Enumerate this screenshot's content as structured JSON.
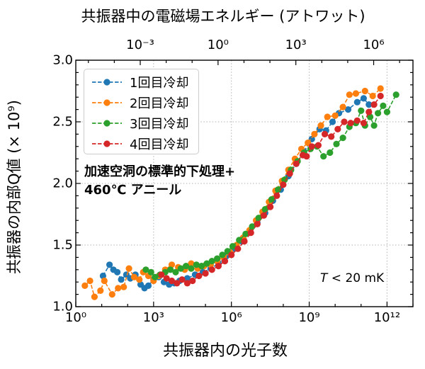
{
  "chart_data": {
    "type": "scatter",
    "title": "共振器中の電磁場エネルギー (アトワット)",
    "top_axis_label": "共振器中の電磁場エネルギー (アトワット)",
    "xlabel": "共振器内の光子数",
    "ylabel": "共振器の内部Q値 (× 10⁹)",
    "x_scale": "log",
    "xlim_exponents": [
      0,
      13
    ],
    "ylim": [
      1.0,
      3.0
    ],
    "grid": true,
    "legend_position": "upper left",
    "x_ticks": [
      {
        "exp": 0,
        "label": "10⁰"
      },
      {
        "exp": 3,
        "label": "10³"
      },
      {
        "exp": 6,
        "label": "10⁶"
      },
      {
        "exp": 9,
        "label": "10⁹"
      },
      {
        "exp": 12,
        "label": "10¹²"
      }
    ],
    "top_ticks": [
      {
        "exp": -3,
        "label": "10⁻³"
      },
      {
        "exp": 0,
        "label": "10⁰"
      },
      {
        "exp": 3,
        "label": "10³"
      },
      {
        "exp": 6,
        "label": "10⁶"
      }
    ],
    "y_ticks": [
      {
        "value": 1.0,
        "label": "1.0"
      },
      {
        "value": 1.5,
        "label": "1.5"
      },
      {
        "value": 2.0,
        "label": "2.0"
      },
      {
        "value": 2.5,
        "label": "2.5"
      },
      {
        "value": 3.0,
        "label": "3.0"
      }
    ],
    "annotations": {
      "treatment_line1": "加速空洞の標準的下処理+",
      "treatment_line2": "460℃ アニール",
      "temperature_variable": "T",
      "temperature_rest": " < 20 mK"
    },
    "series": [
      {
        "name": "1回目冷却",
        "color": "#1f77b4",
        "marker": "circle",
        "linestyle": "dashed",
        "points_log10x_y": [
          [
            1.05,
            1.25
          ],
          [
            1.3,
            1.34
          ],
          [
            1.45,
            1.3
          ],
          [
            1.6,
            1.28
          ],
          [
            1.75,
            1.22
          ],
          [
            1.95,
            1.26
          ],
          [
            2.1,
            1.23
          ],
          [
            2.3,
            1.26
          ],
          [
            2.5,
            1.18
          ],
          [
            2.65,
            1.15
          ],
          [
            2.8,
            1.17
          ],
          [
            3.0,
            1.22
          ],
          [
            3.2,
            1.24
          ],
          [
            3.4,
            1.2
          ],
          [
            3.6,
            1.18
          ],
          [
            3.8,
            1.19
          ],
          [
            4.0,
            1.21
          ],
          [
            4.3,
            1.23
          ],
          [
            4.6,
            1.26
          ],
          [
            4.9,
            1.28
          ],
          [
            5.2,
            1.31
          ],
          [
            5.5,
            1.35
          ],
          [
            5.8,
            1.41
          ],
          [
            6.1,
            1.47
          ],
          [
            6.4,
            1.53
          ],
          [
            6.7,
            1.6
          ],
          [
            7.0,
            1.68
          ],
          [
            7.3,
            1.76
          ],
          [
            7.6,
            1.86
          ],
          [
            7.9,
            1.95
          ],
          [
            8.2,
            2.06
          ],
          [
            8.5,
            2.16
          ],
          [
            8.8,
            2.26
          ],
          [
            9.1,
            2.36
          ],
          [
            9.4,
            2.44
          ],
          [
            9.65,
            2.43
          ],
          [
            9.9,
            2.5
          ],
          [
            10.15,
            2.57
          ],
          [
            10.5,
            2.6
          ],
          [
            10.85,
            2.66
          ],
          [
            11.1,
            2.69
          ],
          [
            11.3,
            2.64
          ]
        ]
      },
      {
        "name": "2回目冷却",
        "color": "#ff7f0e",
        "marker": "circle",
        "linestyle": "dashed",
        "points_log10x_y": [
          [
            0.35,
            1.17
          ],
          [
            0.55,
            1.21
          ],
          [
            0.72,
            1.08
          ],
          [
            0.95,
            1.13
          ],
          [
            1.1,
            1.21
          ],
          [
            1.4,
            1.1
          ],
          [
            1.63,
            1.15
          ],
          [
            1.85,
            1.16
          ],
          [
            2.05,
            1.31
          ],
          [
            2.25,
            1.24
          ],
          [
            2.45,
            1.22
          ],
          [
            2.6,
            1.28
          ],
          [
            2.8,
            1.25
          ],
          [
            3.0,
            1.21
          ],
          [
            3.2,
            1.25
          ],
          [
            3.45,
            1.3
          ],
          [
            3.7,
            1.34
          ],
          [
            3.95,
            1.32
          ],
          [
            4.2,
            1.3
          ],
          [
            4.45,
            1.35
          ],
          [
            4.7,
            1.31
          ],
          [
            4.95,
            1.33
          ],
          [
            5.2,
            1.34
          ],
          [
            5.45,
            1.37
          ],
          [
            5.7,
            1.4
          ],
          [
            5.95,
            1.44
          ],
          [
            6.2,
            1.5
          ],
          [
            6.45,
            1.56
          ],
          [
            6.7,
            1.62
          ],
          [
            6.95,
            1.7
          ],
          [
            7.2,
            1.77
          ],
          [
            7.45,
            1.85
          ],
          [
            7.7,
            1.94
          ],
          [
            7.95,
            2.02
          ],
          [
            8.2,
            2.11
          ],
          [
            8.45,
            2.2
          ],
          [
            8.7,
            2.28
          ],
          [
            8.95,
            2.33
          ],
          [
            9.2,
            2.4
          ],
          [
            9.45,
            2.47
          ],
          [
            9.7,
            2.54
          ],
          [
            10.0,
            2.55
          ],
          [
            10.3,
            2.62
          ],
          [
            10.55,
            2.72
          ],
          [
            10.8,
            2.73
          ],
          [
            11.15,
            2.75
          ],
          [
            11.45,
            2.71
          ],
          [
            11.75,
            2.77
          ]
        ]
      },
      {
        "name": "3回目冷却",
        "color": "#2ca02c",
        "marker": "circle",
        "linestyle": "dashed",
        "points_log10x_y": [
          [
            2.7,
            1.3
          ],
          [
            2.9,
            1.28
          ],
          [
            3.05,
            1.24
          ],
          [
            3.25,
            1.26
          ],
          [
            3.45,
            1.28
          ],
          [
            3.65,
            1.3
          ],
          [
            3.85,
            1.28
          ],
          [
            4.05,
            1.31
          ],
          [
            4.25,
            1.33
          ],
          [
            4.45,
            1.31
          ],
          [
            4.65,
            1.34
          ],
          [
            4.85,
            1.33
          ],
          [
            5.05,
            1.35
          ],
          [
            5.25,
            1.37
          ],
          [
            5.45,
            1.39
          ],
          [
            5.65,
            1.42
          ],
          [
            5.85,
            1.45
          ],
          [
            6.05,
            1.49
          ],
          [
            6.3,
            1.54
          ],
          [
            6.55,
            1.59
          ],
          [
            6.8,
            1.65
          ],
          [
            7.05,
            1.72
          ],
          [
            7.3,
            1.79
          ],
          [
            7.55,
            1.87
          ],
          [
            7.8,
            1.95
          ],
          [
            8.05,
            2.03
          ],
          [
            8.3,
            2.11
          ],
          [
            8.55,
            2.18
          ],
          [
            8.8,
            2.25
          ],
          [
            9.05,
            2.28
          ],
          [
            9.3,
            2.3
          ],
          [
            9.55,
            2.22
          ],
          [
            9.8,
            2.25
          ],
          [
            10.05,
            2.32
          ],
          [
            10.3,
            2.37
          ],
          [
            10.55,
            2.46
          ],
          [
            10.8,
            2.49
          ],
          [
            11.0,
            2.59
          ],
          [
            11.15,
            2.47
          ],
          [
            11.35,
            2.54
          ],
          [
            11.5,
            2.47
          ],
          [
            11.65,
            2.57
          ],
          [
            11.85,
            2.63
          ],
          [
            12.0,
            2.58
          ],
          [
            12.35,
            2.72
          ]
        ]
      },
      {
        "name": "4回目冷却",
        "color": "#d62728",
        "marker": "circle",
        "linestyle": "dashed",
        "points_log10x_y": [
          [
            3.3,
            1.26
          ],
          [
            3.5,
            1.23
          ],
          [
            3.7,
            1.21
          ],
          [
            3.9,
            1.19
          ],
          [
            4.1,
            1.22
          ],
          [
            4.3,
            1.19
          ],
          [
            4.5,
            1.21
          ],
          [
            4.75,
            1.25
          ],
          [
            5.0,
            1.27
          ],
          [
            5.25,
            1.3
          ],
          [
            5.5,
            1.33
          ],
          [
            5.75,
            1.37
          ],
          [
            6.0,
            1.42
          ],
          [
            6.25,
            1.47
          ],
          [
            6.5,
            1.53
          ],
          [
            6.75,
            1.6
          ],
          [
            7.0,
            1.67
          ],
          [
            7.25,
            1.74
          ],
          [
            7.5,
            1.81
          ],
          [
            7.75,
            1.9
          ],
          [
            8.0,
            1.99
          ],
          [
            8.25,
            2.08
          ],
          [
            8.5,
            2.16
          ],
          [
            8.75,
            2.23
          ],
          [
            8.9,
            2.22
          ],
          [
            9.1,
            2.3
          ],
          [
            9.35,
            2.31
          ],
          [
            9.6,
            2.4
          ],
          [
            9.85,
            2.38
          ],
          [
            10.1,
            2.44
          ],
          [
            10.35,
            2.5
          ],
          [
            10.6,
            2.49
          ],
          [
            10.85,
            2.51
          ],
          [
            11.1,
            2.49
          ],
          [
            11.3,
            2.58
          ],
          [
            11.5,
            2.64
          ],
          [
            11.75,
            2.71
          ]
        ]
      }
    ]
  }
}
